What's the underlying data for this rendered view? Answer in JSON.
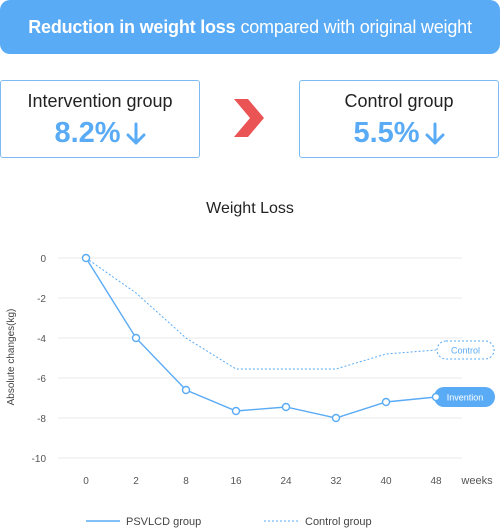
{
  "banner": {
    "bold_text": "Reduction in weight loss",
    "rest_text": "compared with original weight"
  },
  "stats": {
    "intervention": {
      "label": "Intervention group",
      "value": "8.2%"
    },
    "control": {
      "label": "Control group",
      "value": "5.5%"
    }
  },
  "colors": {
    "accent": "#5aabf5",
    "arrow_red": "#ea5455",
    "grid": "#e8e8e8"
  },
  "icons": {
    "down_arrow": "arrow-down-icon",
    "chevron": "chevron-right-icon"
  },
  "chart_data": {
    "type": "line",
    "title": "Weight Loss",
    "xlabel": "weeks",
    "ylabel": "Absolute changes(kg)",
    "categories": [
      "0",
      "2",
      "8",
      "16",
      "24",
      "32",
      "40",
      "48"
    ],
    "ylim": [
      -10,
      0
    ],
    "yticks": [
      0,
      -2,
      -4,
      -6,
      -8,
      -10
    ],
    "grid": true,
    "legend_position": "bottom",
    "series": [
      {
        "name": "PSVLCD group",
        "style": "solid",
        "markers": true,
        "end_tag": "Invention",
        "values": [
          0,
          -4.0,
          -6.6,
          -7.65,
          -7.45,
          -8.0,
          -7.2,
          -6.95
        ]
      },
      {
        "name": "Control group",
        "style": "dashed",
        "markers": false,
        "end_tag": "Control",
        "values": [
          0,
          -1.75,
          -4.0,
          -5.55,
          -5.55,
          -5.55,
          -4.8,
          -4.6
        ]
      }
    ]
  }
}
